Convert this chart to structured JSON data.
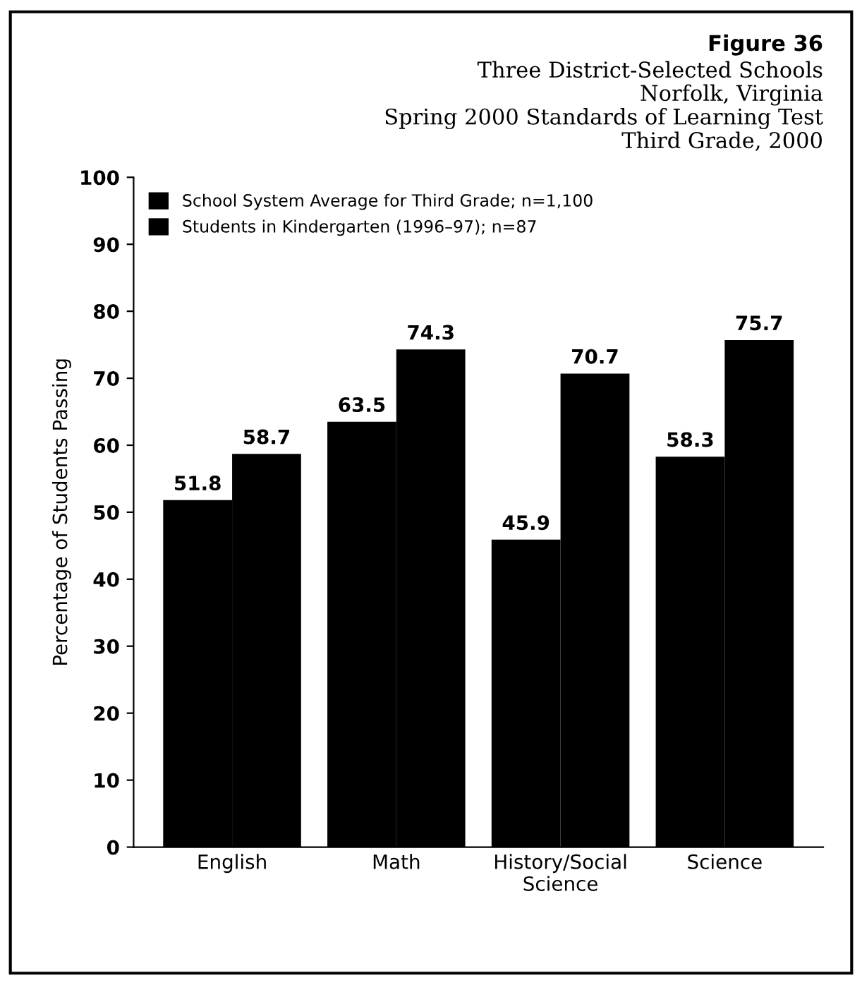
{
  "chart_data": {
    "type": "bar",
    "title": "Figure 36",
    "subtitle": "Three District-Selected Schools\nNorfolk, Virginia\nSpring 2000 Standards of Learning Test\nThird Grade, 2000",
    "ylabel": "Percentage of Students Passing",
    "categories": [
      "English",
      "Math",
      "History/Social\nScience",
      "Science"
    ],
    "series": [
      {
        "name": "School System Average for Third Grade; n=1,100",
        "color": "#000000",
        "values": [
          51.8,
          63.5,
          45.9,
          58.3
        ]
      },
      {
        "name": "Students in Kindergarten (1996–97); n=87",
        "color": "#000000",
        "values": [
          58.7,
          74.3,
          70.7,
          75.7
        ]
      }
    ],
    "ylim": [
      0,
      100
    ],
    "yticks": [
      0,
      10,
      20,
      30,
      40,
      50,
      60,
      70,
      80,
      90,
      100
    ],
    "data_labels": true,
    "legend": "top left",
    "grid": false
  }
}
